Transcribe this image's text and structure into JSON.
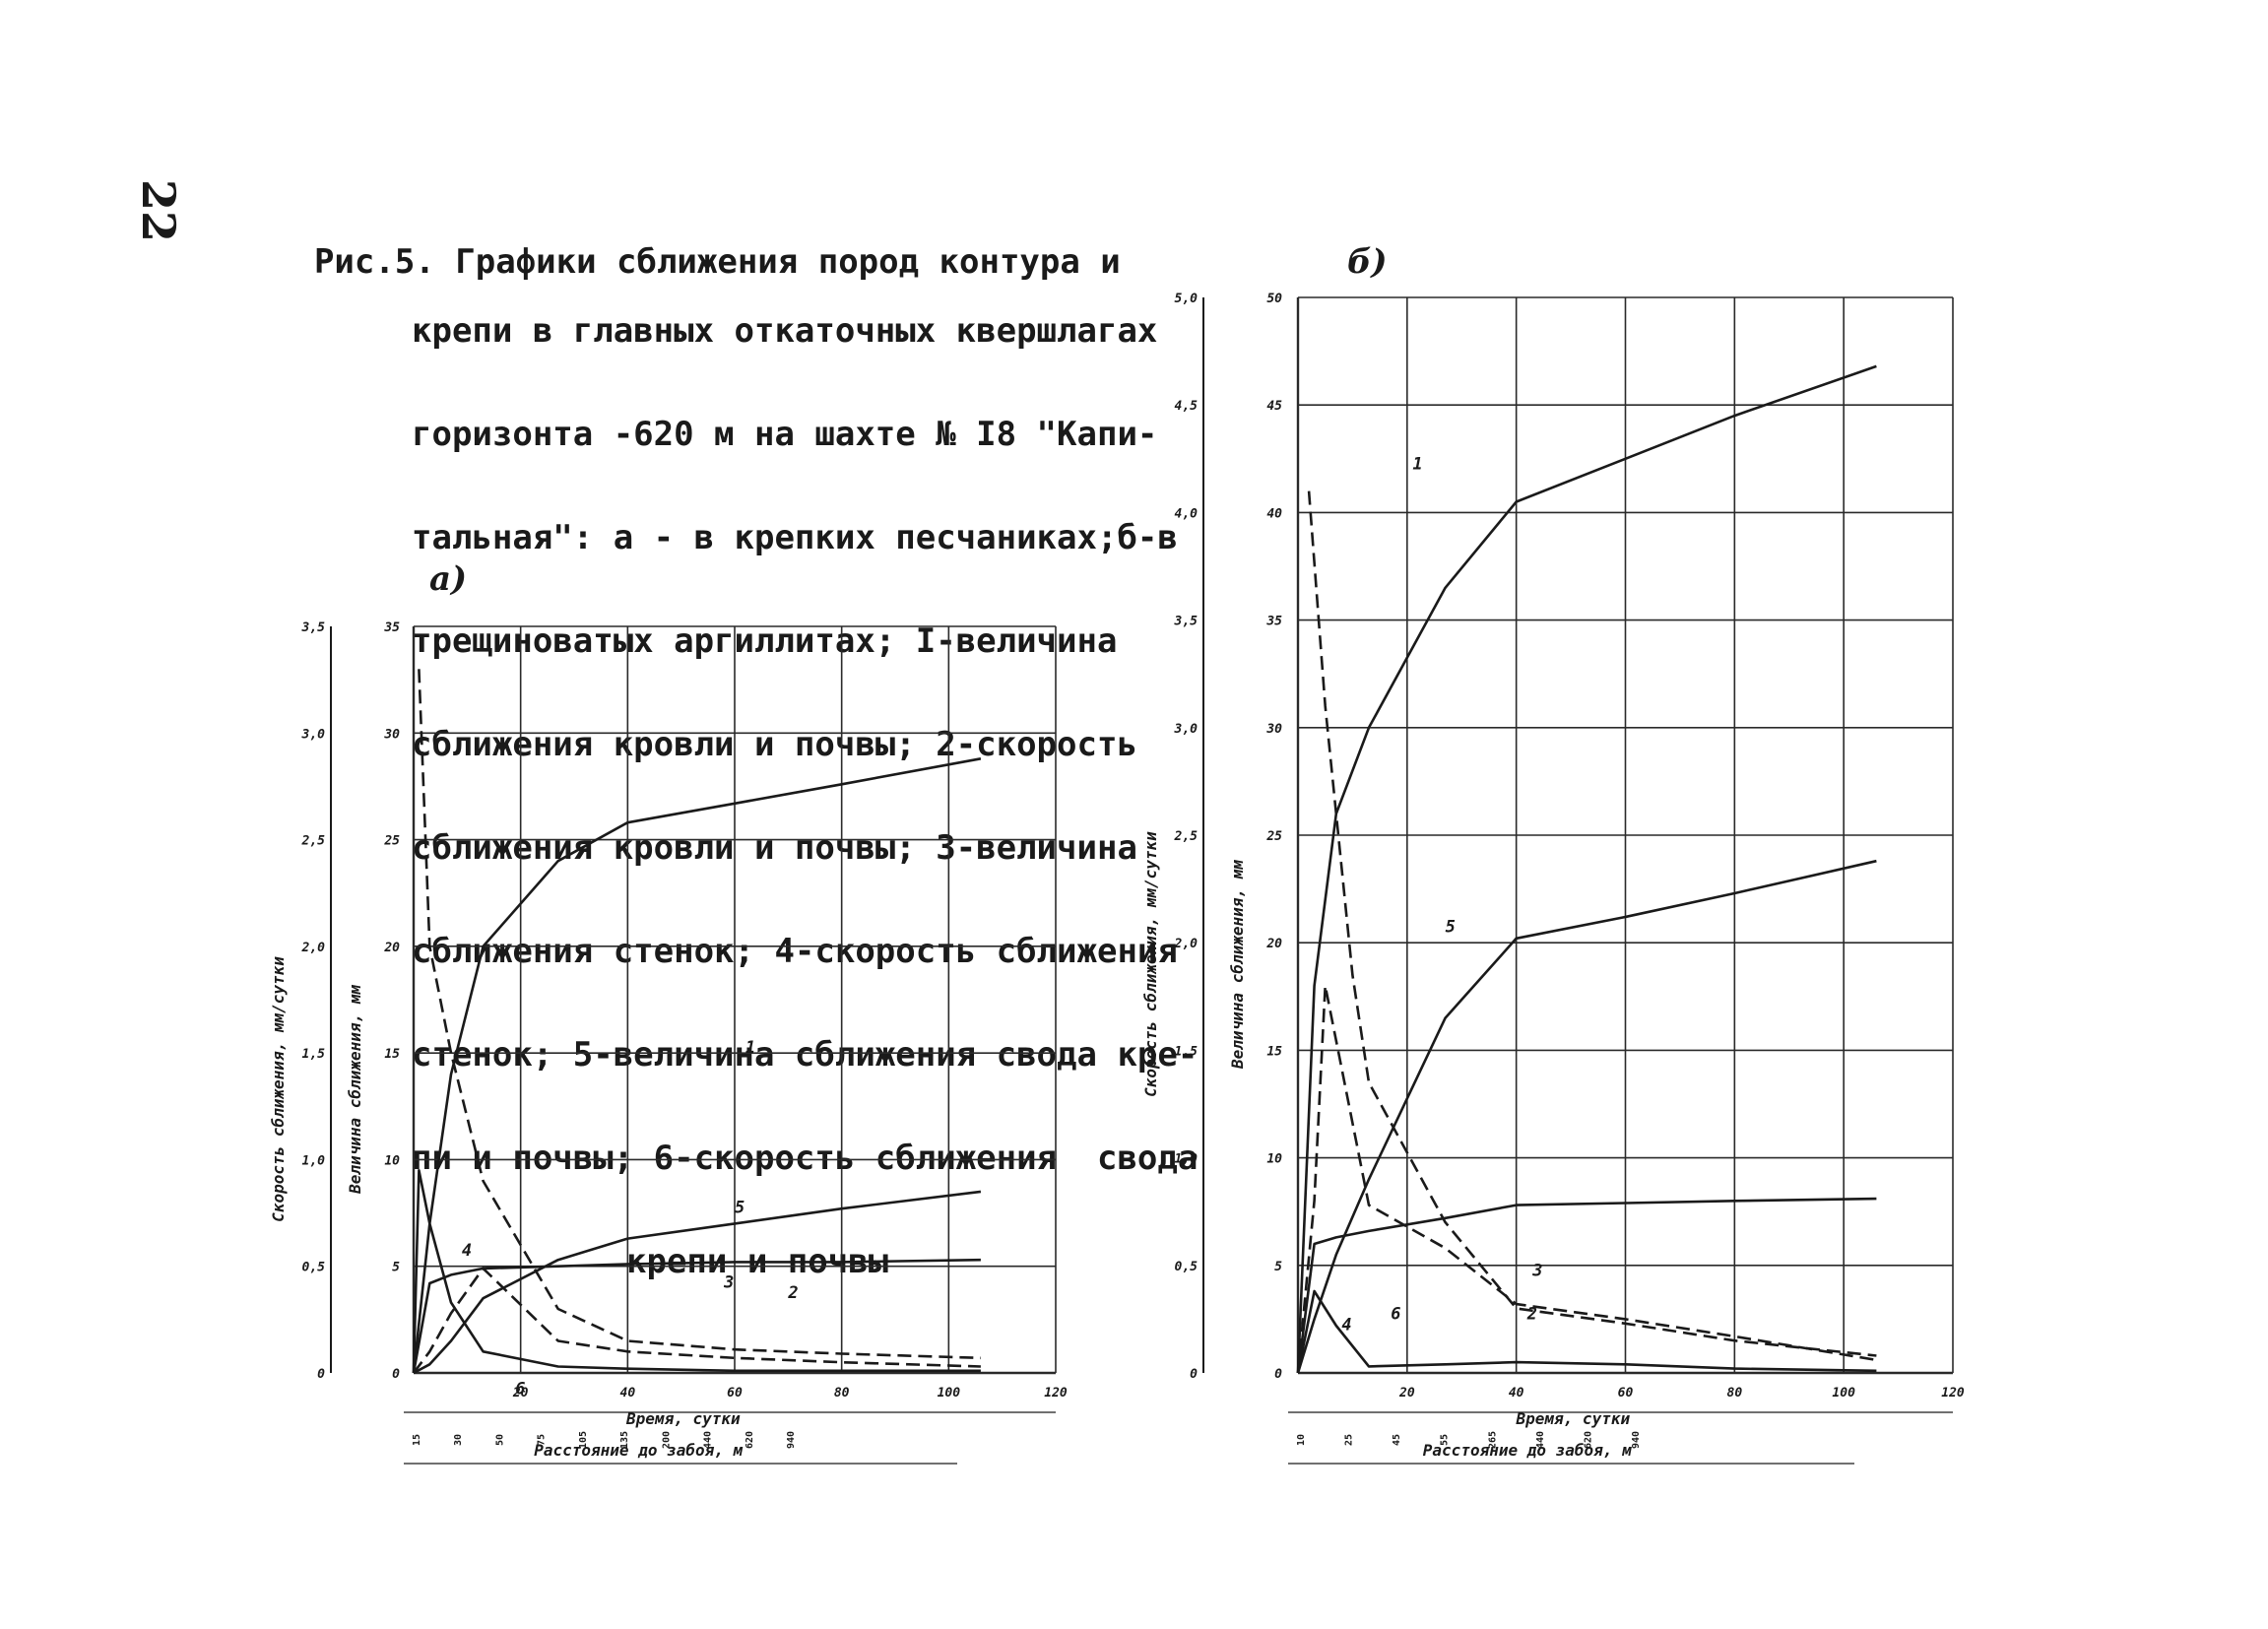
{
  "page_number": "22",
  "caption": {
    "figure_label": "Рис.5.",
    "lines": [
      "Графики сближения пород контура и",
      "крепи в главных откаточных квершлагах",
      "горизонта -620 м на шахте № I8 \"Капи-",
      "тальная\": а - в крепких песчаниках;б-в",
      "трещиноватых аргиллитах; I-величина",
      "сближения кровли и почвы; 2-скорость",
      "сближения кровли и почвы; 3-величина",
      "сближения стенок; 4-скорость сближения",
      "стенок; 5-величина сближения свода кре-",
      "пи и почвы; 6-скорость сближения  свода",
      "крепи и почвы"
    ]
  },
  "colors": {
    "ink": "#1a1a1a",
    "grid": "#2a2a2a",
    "paper": "#ffffff"
  },
  "chart_data": [
    {
      "panel": "а)",
      "type": "line",
      "xlabel": "Время, сутки",
      "x2label": "Расстояние до забоя, м",
      "ylabel_left": "Скорость сближения, мм/сутки",
      "ylabel_right": "Величина сближения, мм",
      "xlim": [
        0,
        120
      ],
      "x_ticks": [
        "20",
        "40",
        "60",
        "80",
        "100",
        "120"
      ],
      "ylim_left": [
        0,
        3.5
      ],
      "y_ticks_left": [
        "0",
        "0,5",
        "1,0",
        "1,5",
        "2,0",
        "2,5",
        "3,0",
        "3,5"
      ],
      "ylim_right": [
        0,
        35
      ],
      "y_ticks_right": [
        "0",
        "5",
        "10",
        "15",
        "20",
        "25",
        "30",
        "35"
      ],
      "distance_ticks": [
        "15",
        "30",
        "50",
        "75",
        "105",
        "135",
        "200",
        "440",
        "620",
        "940"
      ],
      "series": [
        {
          "name": "1",
          "axis": "right",
          "style": "solid",
          "x": [
            0,
            3,
            7,
            13,
            27,
            40,
            60,
            80,
            106
          ],
          "y": [
            0,
            7,
            14,
            20,
            24,
            25.8,
            26.7,
            27.6,
            28.8
          ]
        },
        {
          "name": "2",
          "axis": "left",
          "style": "dashed",
          "x": [
            1,
            3,
            7,
            13,
            27,
            40,
            60,
            80,
            106
          ],
          "y": [
            3.3,
            2.0,
            1.5,
            0.9,
            0.3,
            0.15,
            0.11,
            0.09,
            0.07
          ]
        },
        {
          "name": "3",
          "axis": "right",
          "style": "solid",
          "x": [
            0,
            3,
            7,
            13,
            27,
            40,
            60,
            80,
            106
          ],
          "y": [
            0,
            4.2,
            4.6,
            4.9,
            5.0,
            5.1,
            5.2,
            5.2,
            5.3
          ]
        },
        {
          "name": "4",
          "axis": "left",
          "style": "solid",
          "x": [
            0,
            1,
            3,
            7,
            13,
            27,
            40,
            60,
            80,
            106
          ],
          "y": [
            0,
            0.95,
            0.7,
            0.33,
            0.1,
            0.03,
            0.02,
            0.01,
            0.01,
            0.01
          ]
        },
        {
          "name": "5",
          "axis": "right",
          "style": "solid",
          "x": [
            0,
            3,
            7,
            13,
            27,
            40,
            60,
            80,
            106
          ],
          "y": [
            0,
            0.4,
            1.5,
            3.5,
            5.3,
            6.3,
            7.0,
            7.7,
            8.5
          ]
        },
        {
          "name": "6",
          "axis": "left",
          "style": "dashed",
          "x": [
            0,
            3,
            7,
            13,
            27,
            40,
            60,
            80,
            106
          ],
          "y": [
            0,
            0.1,
            0.28,
            0.49,
            0.15,
            0.1,
            0.07,
            0.05,
            0.03
          ]
        }
      ]
    },
    {
      "panel": "б)",
      "type": "line",
      "xlabel": "Время, сутки",
      "x2label": "Расстояние до забоя, м",
      "ylabel_left": "Скорость сближения, мм/сутки",
      "ylabel_right": "Величина сближения, мм",
      "xlim": [
        0,
        120
      ],
      "x_ticks": [
        "20",
        "40",
        "60",
        "80",
        "100",
        "120"
      ],
      "ylim_left": [
        0,
        5.0
      ],
      "y_ticks_left": [
        "0",
        "0,5",
        "1,0",
        "1,5",
        "2,0",
        "2,5",
        "3,0",
        "3,5",
        "4,0",
        "4,5",
        "5,0"
      ],
      "ylim_right": [
        0,
        50
      ],
      "y_ticks_right": [
        "0",
        "5",
        "10",
        "15",
        "20",
        "25",
        "30",
        "35",
        "40",
        "45",
        "50"
      ],
      "distance_ticks": [
        "10",
        "25",
        "45",
        "55",
        "265",
        "440",
        "620",
        "940"
      ],
      "series": [
        {
          "name": "1",
          "axis": "right",
          "style": "solid",
          "x": [
            0,
            3,
            7,
            13,
            27,
            40,
            60,
            80,
            106
          ],
          "y": [
            0,
            18,
            26,
            30,
            36.5,
            40.5,
            42.5,
            44.5,
            46.8
          ]
        },
        {
          "name": "2",
          "axis": "left",
          "style": "dashed",
          "x": [
            2,
            5,
            10,
            13,
            27,
            40,
            60,
            80,
            106
          ],
          "y": [
            4.1,
            3.1,
            1.85,
            1.35,
            0.7,
            0.3,
            0.23,
            0.15,
            0.08
          ]
        },
        {
          "name": "3",
          "axis": "right",
          "style": "solid",
          "x": [
            0,
            3,
            7,
            13,
            27,
            40,
            60,
            80,
            106
          ],
          "y": [
            0,
            6,
            6.3,
            6.6,
            7.2,
            7.8,
            7.9,
            8.0,
            8.1
          ]
        },
        {
          "name": "4",
          "axis": "left",
          "style": "solid",
          "x": [
            0,
            3,
            7,
            13,
            27,
            40,
            60,
            80,
            106
          ],
          "y": [
            0,
            0.38,
            0.22,
            0.03,
            0.04,
            0.05,
            0.04,
            0.02,
            0.01
          ]
        },
        {
          "name": "5",
          "axis": "right",
          "style": "solid",
          "x": [
            0,
            3,
            7,
            13,
            27,
            40,
            60,
            80,
            106
          ],
          "y": [
            0,
            2.5,
            5.5,
            9,
            16.5,
            20.2,
            21.2,
            22.3,
            23.8
          ]
        },
        {
          "name": "6",
          "axis": "left",
          "style": "dashed",
          "x": [
            0,
            3,
            5,
            13,
            27,
            40,
            60,
            80,
            106
          ],
          "y": [
            0,
            0.8,
            1.8,
            0.78,
            0.58,
            0.32,
            0.25,
            0.17,
            0.06
          ]
        }
      ]
    }
  ]
}
